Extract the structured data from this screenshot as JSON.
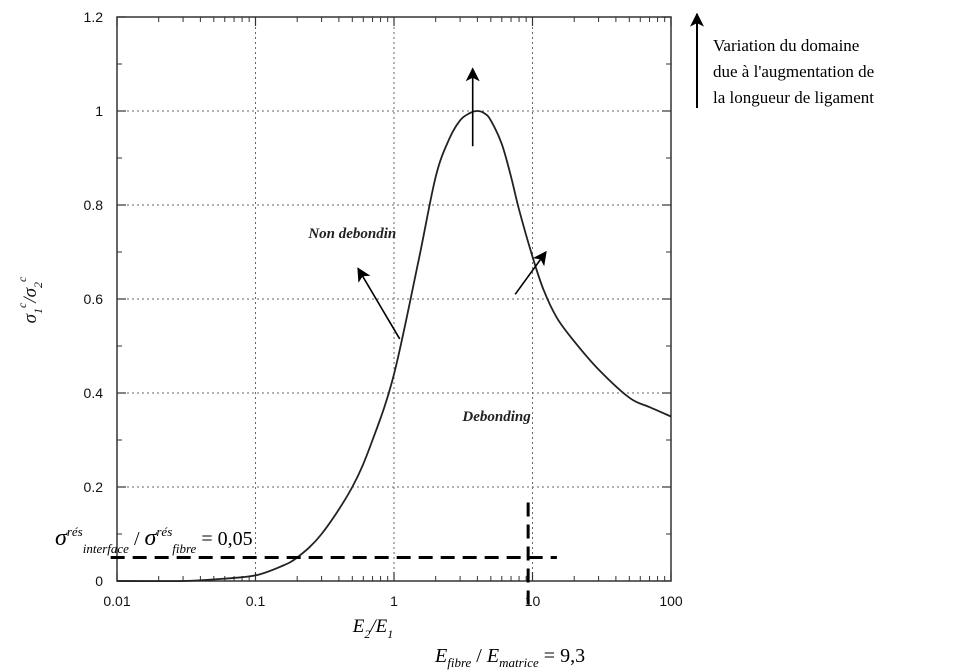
{
  "chart_data": {
    "type": "line",
    "xscale": "log",
    "xlim": [
      0.01,
      100
    ],
    "ylim": [
      0,
      1.2
    ],
    "xticks": [
      {
        "v": 0.01,
        "label": "0.01"
      },
      {
        "v": 0.1,
        "label": "0.1"
      },
      {
        "v": 1,
        "label": "1"
      },
      {
        "v": 10,
        "label": "10"
      },
      {
        "v": 100,
        "label": "100"
      }
    ],
    "yticks": [
      {
        "v": 0,
        "label": "0"
      },
      {
        "v": 0.2,
        "label": "0.2"
      },
      {
        "v": 0.4,
        "label": "0.4"
      },
      {
        "v": 0.6,
        "label": "0.6"
      },
      {
        "v": 0.8,
        "label": "0.8"
      },
      {
        "v": 1,
        "label": "1"
      },
      {
        "v": 1.2,
        "label": "1.2"
      }
    ],
    "grid": true,
    "xlabel": {
      "base": "E",
      "sub1": "2",
      "sep": "/",
      "base2": "E",
      "sub2": "1"
    },
    "ylabel": {
      "base": "σ",
      "sub1": "1",
      "sup1": "c",
      "sep": "/",
      "base2": "σ",
      "sub2": "2",
      "sup2": "c"
    },
    "series": [
      {
        "color": "#222222",
        "x": [
          0.01,
          0.03,
          0.06,
          0.1,
          0.15,
          0.2,
          0.3,
          0.5,
          0.7,
          1,
          1.5,
          2,
          2.5,
          3,
          3.5,
          4,
          4.5,
          5,
          6,
          7,
          8,
          10,
          12,
          15,
          20,
          30,
          50,
          70,
          100
        ],
        "y": [
          0.0,
          0.0,
          0.005,
          0.012,
          0.03,
          0.05,
          0.1,
          0.2,
          0.3,
          0.44,
          0.68,
          0.86,
          0.94,
          0.98,
          0.995,
          1.0,
          0.995,
          0.98,
          0.93,
          0.86,
          0.79,
          0.69,
          0.62,
          0.56,
          0.51,
          0.45,
          0.39,
          0.37,
          0.35
        ]
      }
    ],
    "regions": [
      {
        "label": "Non debondin",
        "x": 0.5,
        "y": 0.73
      },
      {
        "label": "Debonding",
        "x": 5.5,
        "y": 0.34
      }
    ],
    "arrows": [
      {
        "x1": 3.7,
        "y1": 0.925,
        "x2": 3.7,
        "y2": 1.09
      },
      {
        "x1": 1.1,
        "y1": 0.515,
        "x2": 0.55,
        "y2": 0.665
      },
      {
        "x1": 7.5,
        "y1": 0.61,
        "x2": 12.5,
        "y2": 0.7
      }
    ],
    "dashed_lines": [
      {
        "orient": "h",
        "y": 0.05,
        "x1": 0.009,
        "x2": 15
      },
      {
        "orient": "v",
        "x": 9.3,
        "y1": -0.05,
        "y2": 0.17
      }
    ]
  },
  "annotations": {
    "interface_ratio": {
      "sigma": "σ",
      "sup": "rés",
      "sub1": "interface",
      "sep": " / ",
      "sigma2": "σ",
      "sup2": "rés",
      "sub2": "fibre",
      "value": " = 0,05"
    },
    "modulus_ratio": {
      "e1": "E",
      "sub1": "fibre",
      "sep": " / ",
      "e2": "E",
      "sub2": "matrice",
      "value": " = 9,3"
    }
  },
  "legend": {
    "lines": [
      "Variation du domaine",
      "due à l'augmentation de",
      "la longueur de ligament"
    ]
  }
}
